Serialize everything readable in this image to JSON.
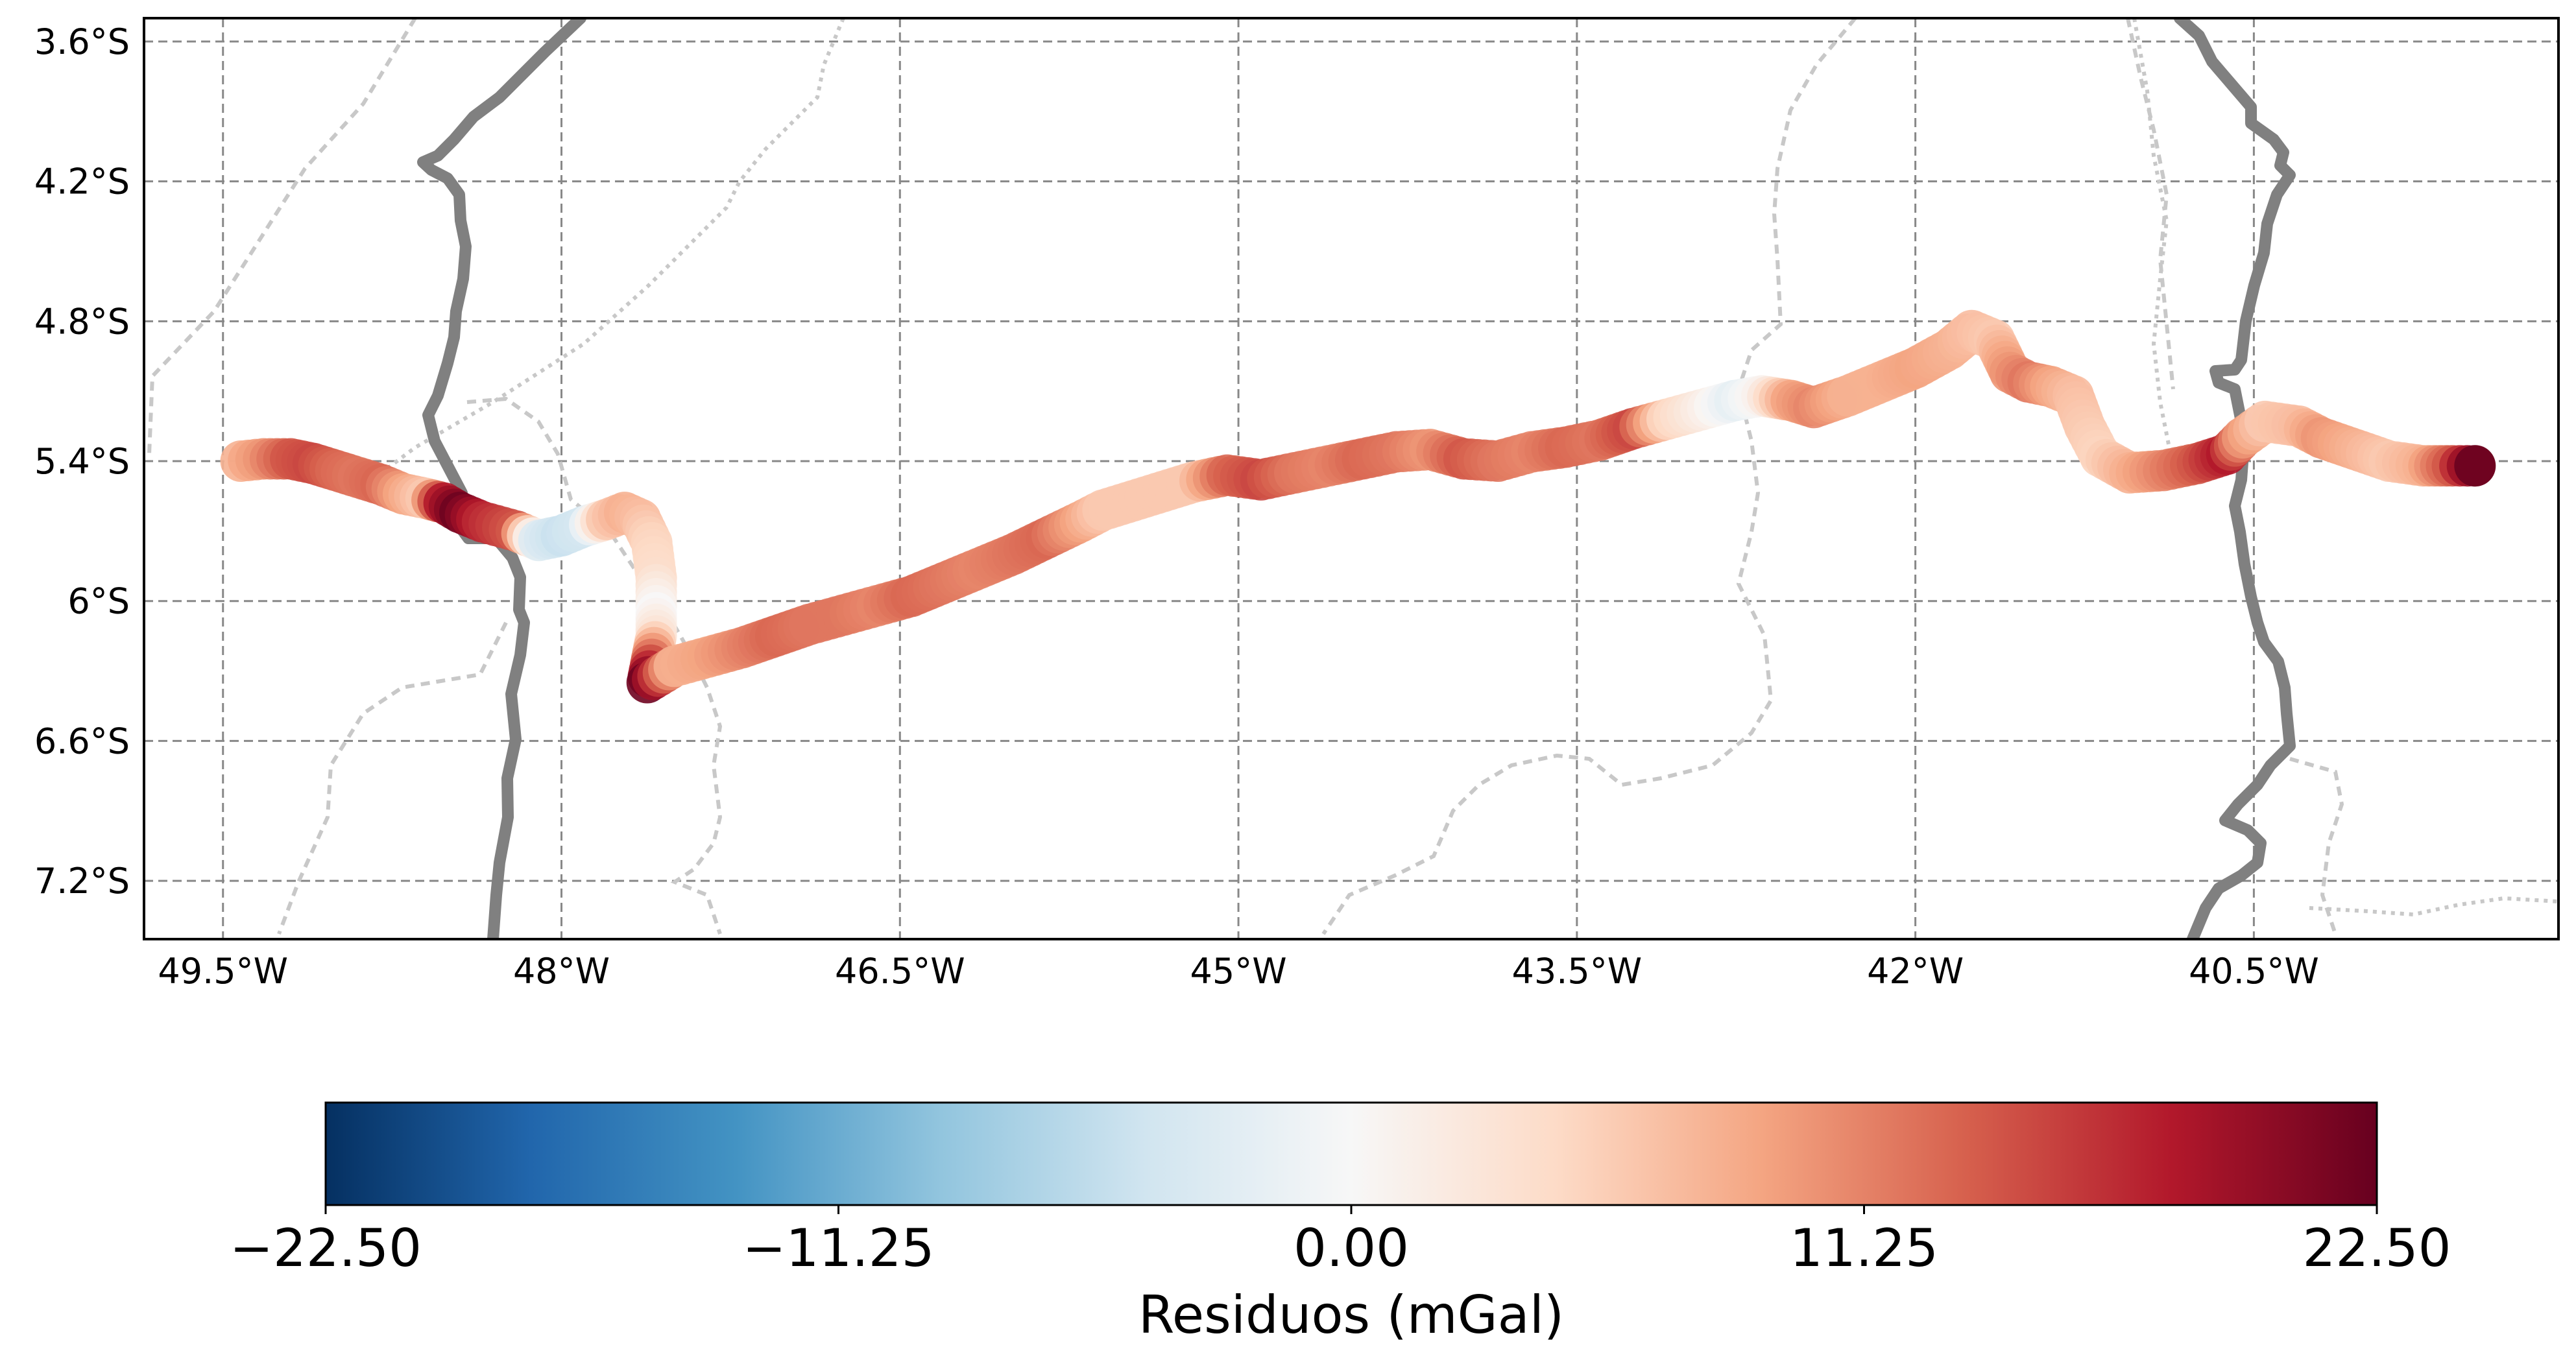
{
  "chart_data": {
    "type": "scatter",
    "map": {
      "lon_range": [
        -49.85,
        -39.15
      ],
      "lat_range": [
        -7.45,
        -3.5
      ],
      "grid": true,
      "x_ticks": [
        -49.5,
        -48,
        -46.5,
        -45,
        -43.5,
        -42,
        -40.5
      ],
      "y_ticks": [
        -3.6,
        -4.2,
        -4.8,
        -5.4,
        -6.0,
        -6.6,
        -7.2
      ],
      "x_tick_labels": [
        "49.5°W",
        "48°W",
        "46.5°W",
        "45°W",
        "43.5°W",
        "42°W",
        "40.5°W"
      ],
      "y_tick_labels": [
        "3.6°S",
        "4.2°S",
        "4.8°S",
        "5.4°S",
        "6°S",
        "6.6°S",
        "7.2°S"
      ]
    },
    "colorbar": {
      "label": "Residuos (mGal)",
      "vmin": -22.5,
      "vmax": 22.5,
      "colormap": "RdBu_r",
      "ticks": [
        -22.5,
        -11.25,
        0.0,
        11.25,
        22.5
      ],
      "tick_labels": [
        "−22.50",
        "−11.25",
        "0.00",
        "11.25",
        "22.50"
      ]
    },
    "colors": {
      "state_boundary": "#808080",
      "dashed_boundary": "#c8c8c8",
      "grid": "#888888"
    },
    "series": [
      {
        "values": [
          [
            -49.42,
            -5.4,
            8
          ],
          [
            -49.32,
            -5.39,
            10
          ],
          [
            -49.2,
            -5.39,
            14
          ],
          [
            -49.1,
            -5.41,
            15
          ],
          [
            -49.0,
            -5.44,
            13
          ],
          [
            -48.9,
            -5.47,
            12
          ],
          [
            -48.8,
            -5.5,
            13
          ],
          [
            -48.7,
            -5.54,
            9
          ],
          [
            -48.6,
            -5.56,
            6
          ],
          [
            -48.52,
            -5.58,
            18
          ],
          [
            -48.45,
            -5.62,
            22
          ],
          [
            -48.35,
            -5.66,
            17
          ],
          [
            -48.2,
            -5.7,
            14
          ],
          [
            -48.1,
            -5.74,
            -3
          ],
          [
            -48.0,
            -5.72,
            -5
          ],
          [
            -47.9,
            -5.68,
            -4
          ],
          [
            -47.8,
            -5.65,
            6
          ],
          [
            -47.72,
            -5.62,
            8
          ],
          [
            -47.65,
            -5.65,
            7
          ],
          [
            -47.6,
            -5.75,
            5
          ],
          [
            -47.58,
            -5.9,
            4
          ],
          [
            -47.58,
            -6.05,
            0
          ],
          [
            -47.58,
            -6.15,
            3
          ],
          [
            -47.6,
            -6.25,
            12
          ],
          [
            -47.62,
            -6.35,
            22
          ],
          [
            -47.5,
            -6.28,
            8
          ],
          [
            -47.35,
            -6.24,
            9
          ],
          [
            -47.2,
            -6.2,
            11
          ],
          [
            -47.05,
            -6.15,
            13
          ],
          [
            -46.9,
            -6.1,
            12
          ],
          [
            -46.75,
            -6.06,
            12
          ],
          [
            -46.6,
            -6.02,
            11
          ],
          [
            -46.45,
            -5.98,
            13
          ],
          [
            -46.3,
            -5.92,
            12
          ],
          [
            -46.15,
            -5.86,
            11
          ],
          [
            -46.0,
            -5.8,
            12
          ],
          [
            -45.85,
            -5.73,
            13
          ],
          [
            -45.7,
            -5.66,
            9
          ],
          [
            -45.6,
            -5.61,
            6
          ],
          [
            -45.2,
            -5.49,
            6
          ],
          [
            -45.05,
            -5.46,
            13
          ],
          [
            -44.9,
            -5.48,
            15
          ],
          [
            -44.75,
            -5.45,
            12
          ],
          [
            -44.6,
            -5.42,
            11
          ],
          [
            -44.45,
            -5.39,
            13
          ],
          [
            -44.3,
            -5.36,
            12
          ],
          [
            -44.15,
            -5.35,
            10
          ],
          [
            -44.0,
            -5.39,
            14
          ],
          [
            -43.85,
            -5.4,
            12
          ],
          [
            -43.7,
            -5.36,
            11
          ],
          [
            -43.55,
            -5.34,
            13
          ],
          [
            -43.4,
            -5.31,
            12
          ],
          [
            -43.25,
            -5.26,
            15
          ],
          [
            -43.1,
            -5.22,
            5
          ],
          [
            -42.95,
            -5.18,
            2
          ],
          [
            -42.8,
            -5.14,
            -2
          ],
          [
            -42.68,
            -5.12,
            1
          ],
          [
            -42.55,
            -5.14,
            9
          ],
          [
            -42.45,
            -5.17,
            11
          ],
          [
            -42.3,
            -5.12,
            8
          ],
          [
            -42.15,
            -5.06,
            8
          ],
          [
            -42.0,
            -5.0,
            9
          ],
          [
            -41.85,
            -4.92,
            8
          ],
          [
            -41.75,
            -4.84,
            7
          ],
          [
            -41.65,
            -4.88,
            6
          ],
          [
            -41.58,
            -5.02,
            10
          ],
          [
            -41.5,
            -5.06,
            12
          ],
          [
            -41.4,
            -5.08,
            9
          ],
          [
            -41.3,
            -5.12,
            7
          ],
          [
            -41.25,
            -5.25,
            6
          ],
          [
            -41.18,
            -5.38,
            5
          ],
          [
            -41.05,
            -5.45,
            8
          ],
          [
            -40.9,
            -5.44,
            11
          ],
          [
            -40.75,
            -5.41,
            14
          ],
          [
            -40.62,
            -5.37,
            18
          ],
          [
            -40.55,
            -5.3,
            10
          ],
          [
            -40.45,
            -5.23,
            6
          ],
          [
            -40.3,
            -5.25,
            7
          ],
          [
            -40.2,
            -5.3,
            10
          ],
          [
            -40.05,
            -5.35,
            8
          ],
          [
            -39.9,
            -5.4,
            6
          ],
          [
            -39.75,
            -5.42,
            8
          ],
          [
            -39.62,
            -5.42,
            14
          ],
          [
            -39.52,
            -5.42,
            22
          ]
        ]
      }
    ]
  }
}
